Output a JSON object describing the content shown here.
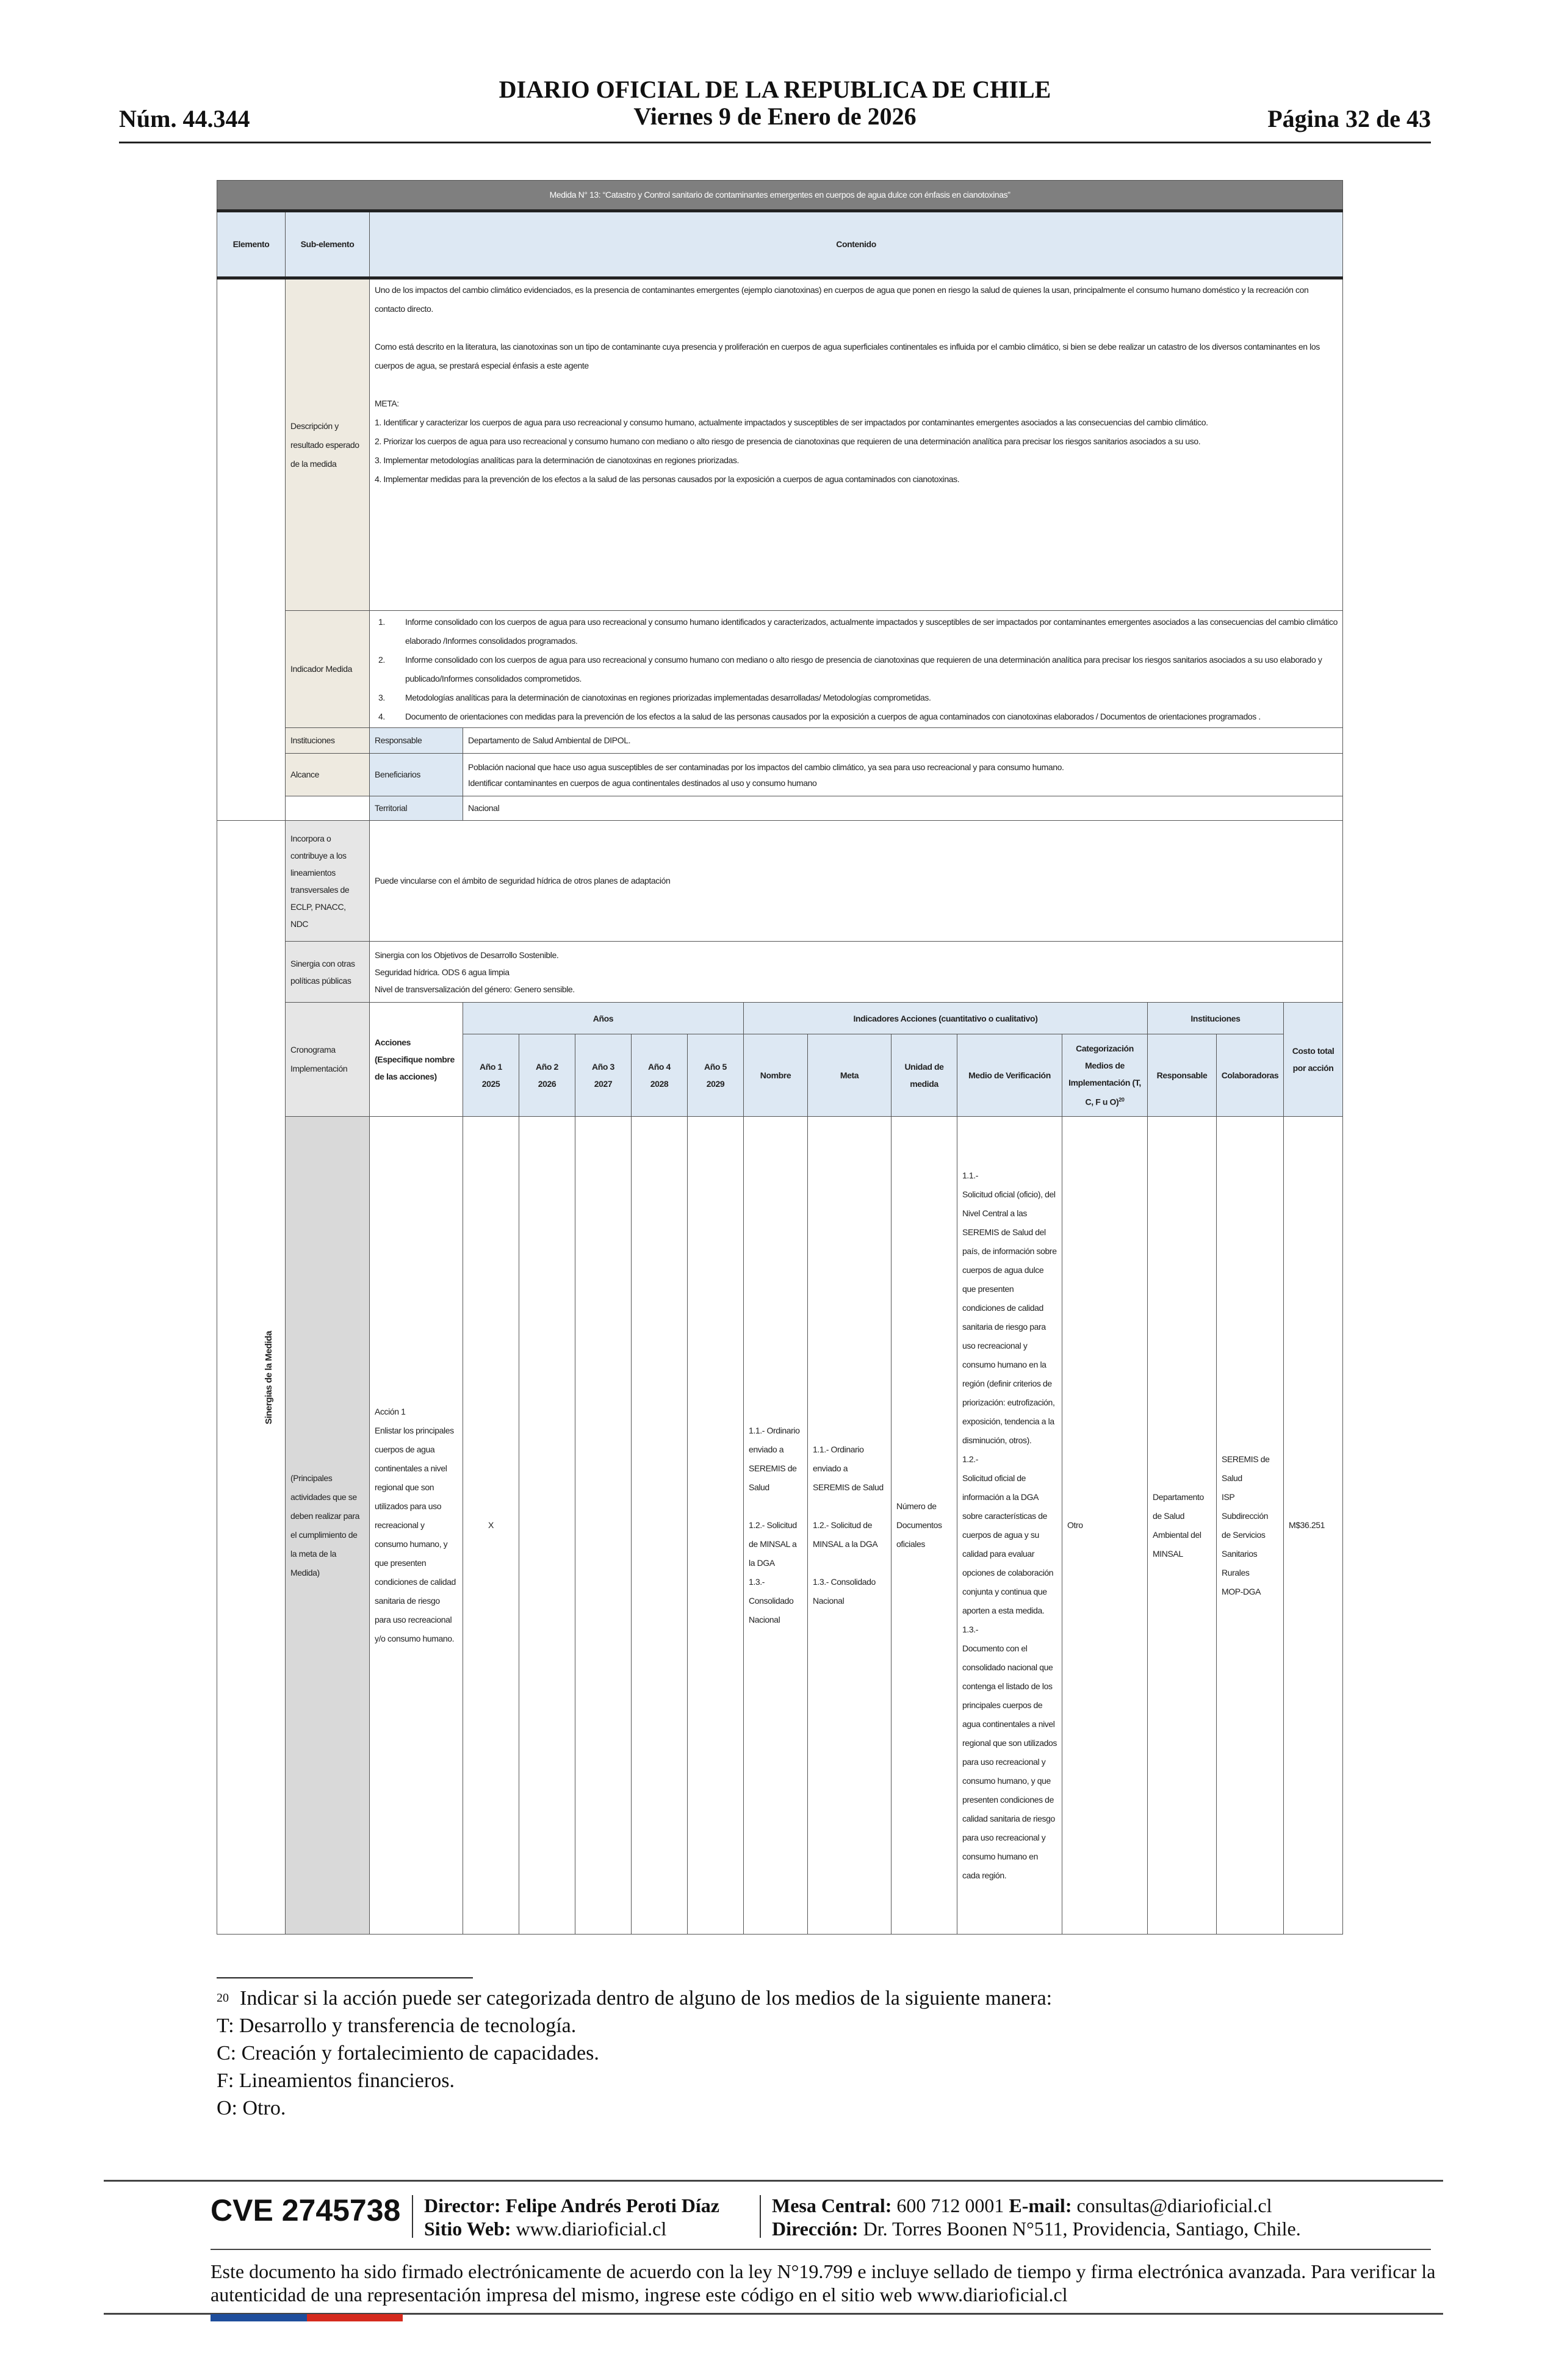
{
  "header": {
    "number": "Núm. 44.344",
    "title": "DIARIO OFICIAL DE LA REPUBLICA DE CHILE",
    "date": "Viernes 9 de Enero de 2026",
    "page": "Página 32 de 43"
  },
  "table": {
    "title": "Medida N° 13: “Catastro y Control sanitario de contaminantes emergentes en cuerpos de agua dulce con énfasis en cianotoxinas”",
    "headers": {
      "elemento": "Elemento",
      "sub": "Sub-elemento",
      "contenido": "Contenido"
    },
    "descripcion": {
      "label": "Descripción y resultado esperado de la medida",
      "p1": "Uno de los impactos del cambio climático evidenciados, es la presencia de contaminantes emergentes (ejemplo cianotoxinas) en cuerpos de agua que ponen en riesgo la salud de quienes la usan, principalmente el consumo humano doméstico y la recreación con contacto directo.",
      "p2": "Como está descrito en la literatura, las cianotoxinas son un tipo de contaminante cuya presencia y proliferación en cuerpos de agua superficiales continentales es influida por el cambio climático, si bien se debe realizar un catastro de los diversos contaminantes en los cuerpos de agua, se prestará especial énfasis a este agente",
      "meta_label": "META:",
      "meta": [
        "1. Identificar y caracterizar los cuerpos de agua para uso recreacional y consumo humano, actualmente impactados y susceptibles de ser impactados por contaminantes emergentes asociados a las consecuencias del cambio climático.",
        "2. Priorizar los cuerpos de agua para uso recreacional y consumo humano con mediano o alto riesgo de presencia de cianotoxinas que requieren de una determinación analítica para precisar los riesgos sanitarios asociados a su uso.",
        "3. Implementar metodologías analíticas para la determinación de cianotoxinas en regiones priorizadas.",
        "4. Implementar medidas para la prevención de los efectos a la salud de las personas causados por la exposición a cuerpos de agua contaminados con cianotoxinas."
      ]
    },
    "indicador": {
      "label": "Indicador Medida",
      "items": [
        {
          "n": "1.",
          "text": "Informe consolidado con los cuerpos de agua para uso recreacional y consumo humano identificados y caracterizados, actualmente impactados y susceptibles de ser impactados por contaminantes emergentes asociados a las consecuencias del cambio climático elaborado /Informes consolidados programados."
        },
        {
          "n": "2.",
          "text": "Informe consolidado con los cuerpos de agua para uso recreacional y consumo humano con mediano o alto riesgo de presencia de cianotoxinas que requieren de una determinación analítica para precisar los riesgos sanitarios asociados a su uso elaborado y publicado/Informes consolidados comprometidos."
        },
        {
          "n": "3.",
          "text": "Metodologías analíticas para la determinación de cianotoxinas en regiones priorizadas implementadas desarrolladas/ Metodologías comprometidas."
        },
        {
          "n": "4.",
          "text": "Documento de orientaciones con medidas para la prevención de los efectos a la salud de las personas causados por la exposición a cuerpos de agua contaminados con cianotoxinas elaborados / Documentos de orientaciones programados ."
        }
      ]
    },
    "instituciones": {
      "label": "Instituciones",
      "sub": "Responsable",
      "value": "Departamento de Salud Ambiental de DIPOL."
    },
    "alcance": {
      "label": "Alcance",
      "sub": "Beneficiarios",
      "value1": "Población nacional que hace uso agua susceptibles de ser contaminadas por los impactos del cambio climático, ya sea para uso recreacional y para consumo humano.",
      "value2": "Identificar contaminantes en cuerpos de agua continentales destinados al uso y consumo humano",
      "territorial_label": "Territorial",
      "territorial_value": "Nacional"
    },
    "sinergias_label": "Sinergias de la Medida",
    "incorpora": {
      "label": "Incorpora o contribuye a los lineamientos transversales de ECLP, PNACC, NDC",
      "value": "Puede vincularse con el ámbito de seguridad hídrica de otros planes de adaptación"
    },
    "sinergia_otras": {
      "label": "Sinergia con otras políticas públicas",
      "lines": [
        "Sinergia con los Objetivos de Desarrollo Sostenible.",
        "Seguridad hídrica. ODS 6 agua limpia",
        "Nivel de transversalización del género: Genero sensible."
      ]
    },
    "cronograma": {
      "label": "Cronograma Implementación",
      "acciones_header": "Acciones (Especifique nombre de las acciones)",
      "anos_header": "Años",
      "years": [
        {
          "l": "Año 1",
          "y": "2025"
        },
        {
          "l": "Año 2",
          "y": "2026"
        },
        {
          "l": "Año 3",
          "y": "2027"
        },
        {
          "l": "Año 4",
          "y": "2028"
        },
        {
          "l": "Año 5",
          "y": "2029"
        }
      ],
      "indicadores_header": "Indicadores Acciones (cuantitativo o cualitativo)",
      "nombre": "Nombre",
      "meta": "Meta",
      "unidad": "Unidad de medida",
      "medio": "Medio de Verificación",
      "categorizacion": "Categorización Medios de Implementación (T, C, F u O)",
      "cat_sup": "20",
      "inst_header": "Instituciones",
      "responsable": "Responsable",
      "colaboradoras": "Colaboradoras",
      "costo": "Costo total por acción"
    },
    "body": {
      "label": "(Principales actividades que se deben realizar para el cumplimiento de la meta de la Medida)",
      "accion": "Acción 1\nEnlistar los principales cuerpos de agua continentales a nivel regional que son utilizados para uso recreacional y consumo humano, y que presenten condiciones de calidad sanitaria de riesgo para uso recreacional y/o consumo humano.",
      "year_marks": [
        "X",
        "",
        "",
        "",
        ""
      ],
      "nombre": "1.1.- Ordinario enviado a SEREMIS de Salud\n\n1.2.- Solicitud de MINSAL a la DGA\n1.3.- Consolidado Nacional",
      "meta": "1.1.- Ordinario enviado a SEREMIS de Salud\n\n1.2.- Solicitud de MINSAL a la DGA\n\n1.3.- Consolidado Nacional",
      "unidad": "Número de Documentos oficiales",
      "medio": "1.1.-\nSolicitud oficial (oficio), del Nivel Central a las SEREMIS de Salud del país, de información sobre cuerpos de agua dulce que presenten condiciones de calidad sanitaria de riesgo para uso recreacional y consumo humano en la región (definir criterios de priorización: eutrofización, exposición, tendencia a la disminución, otros).\n1.2.-\nSolicitud oficial de información a la DGA sobre características de cuerpos de agua y su calidad para evaluar opciones de colaboración conjunta y continua que aporten a esta medida.\n1.3.-\nDocumento con el consolidado nacional que contenga el listado de los principales cuerpos de agua continentales a nivel regional que son utilizados para uso recreacional y consumo humano, y que presenten condiciones de calidad sanitaria de riesgo para uso recreacional y consumo humano en cada región.",
      "categorizacion": "Otro",
      "responsable": "Departamento de Salud Ambiental del MINSAL",
      "colaboradoras": "SEREMIS de Salud\nISP\nSubdirección de Servicios Sanitarios Rurales\nMOP-DGA",
      "costo": "M$36.251"
    }
  },
  "footnote": {
    "number": "20",
    "lines": [
      "Indicar si la acción puede ser categorizada dentro de alguno de los medios de la siguiente manera:",
      "T: Desarrollo y transferencia de tecnología.",
      "C: Creación y fortalecimiento de capacidades.",
      "F: Lineamientos financieros.",
      "O: Otro."
    ]
  },
  "footer": {
    "cve": "CVE 2745738",
    "director_label": "Director:",
    "director": "Felipe Andrés Peroti Díaz",
    "sitio_label": "Sitio Web:",
    "sitio": "www.diarioficial.cl",
    "mesa_label": "Mesa Central:",
    "mesa": "600 712 0001",
    "email_label": "E-mail:",
    "email": "consultas@diarioficial.cl",
    "direccion_label": "Dirección:",
    "direccion": "Dr. Torres Boonen N°511, Providencia, Santiago, Chile.",
    "legal": "Este documento ha sido firmado electrónicamente de acuerdo con la ley N°19.799 e incluye sellado de tiempo y firma electrónica avanzada. Para verificar la autenticidad de una representación impresa del mismo, ingrese este código en el sitio web www.diarioficial.cl"
  },
  "colors": {
    "title_bar": "#7f7f7f",
    "header_blue": "#dde8f3",
    "beige": "#eeeae0",
    "gray": "#d9d9d9",
    "flag_blue": "#1f4e9c",
    "flag_red": "#d52b1e"
  }
}
